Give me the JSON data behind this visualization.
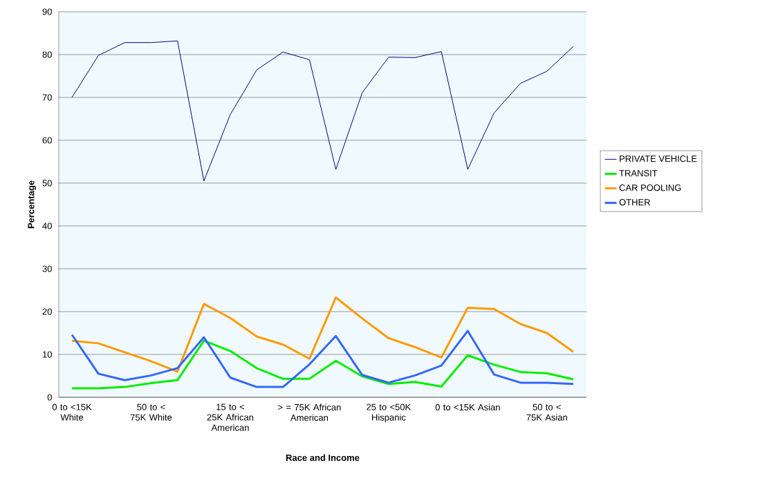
{
  "chart_data": {
    "type": "line",
    "xlabel": "Race and Income",
    "ylabel": "Percentage",
    "categories": [
      "0 to <15K White",
      null,
      null,
      "50 to < 75K White",
      null,
      null,
      "15 to < 25K African American",
      null,
      null,
      "> = 75K African American",
      null,
      null,
      "25 to <50K Hispanic",
      null,
      null,
      "0 to <15K Asian",
      null,
      null,
      "50 to < 75K Asian",
      null
    ],
    "series": [
      {
        "name": "PRIVATE VEHICLE",
        "color": "#000080",
        "values": [
          70,
          79.8,
          82.8,
          82.8,
          83.2,
          50.5,
          66,
          76.4,
          80.6,
          78.8,
          53.2,
          71.1,
          79.4,
          79.3,
          80.7,
          53.2,
          66.4,
          73.3,
          76.1,
          81.9
        ]
      },
      {
        "name": "TRANSIT",
        "color": "#00ee00",
        "values": [
          2.1,
          2.1,
          2.4,
          3.3,
          4.0,
          13.2,
          10.8,
          6.8,
          4.3,
          4.3,
          8.5,
          4.9,
          3.1,
          3.6,
          2.5,
          9.8,
          7.6,
          5.9,
          5.6,
          4.2
        ]
      },
      {
        "name": "CAR POOLING",
        "color": "#ff9900",
        "values": [
          13.2,
          12.6,
          10.5,
          8.4,
          6.0,
          21.8,
          18.5,
          14.2,
          12.3,
          9.0,
          23.3,
          18.4,
          13.8,
          11.7,
          9.3,
          20.9,
          20.6,
          17.1,
          15.0,
          10.6
        ]
      },
      {
        "name": "OTHER",
        "color": "#3366ff",
        "values": [
          14.6,
          5.5,
          4.0,
          5.1,
          6.8,
          14.0,
          4.6,
          2.4,
          2.4,
          7.7,
          14.3,
          5.2,
          3.4,
          5.1,
          7.4,
          15.5,
          5.3,
          3.4,
          3.4,
          3.1
        ]
      }
    ],
    "ylim": [
      0,
      90
    ],
    "yticks": [
      0,
      10,
      20,
      30,
      40,
      50,
      60,
      70,
      80,
      90
    ],
    "grid": "y",
    "legend": "right",
    "marker": "none",
    "line_style": "solid"
  }
}
